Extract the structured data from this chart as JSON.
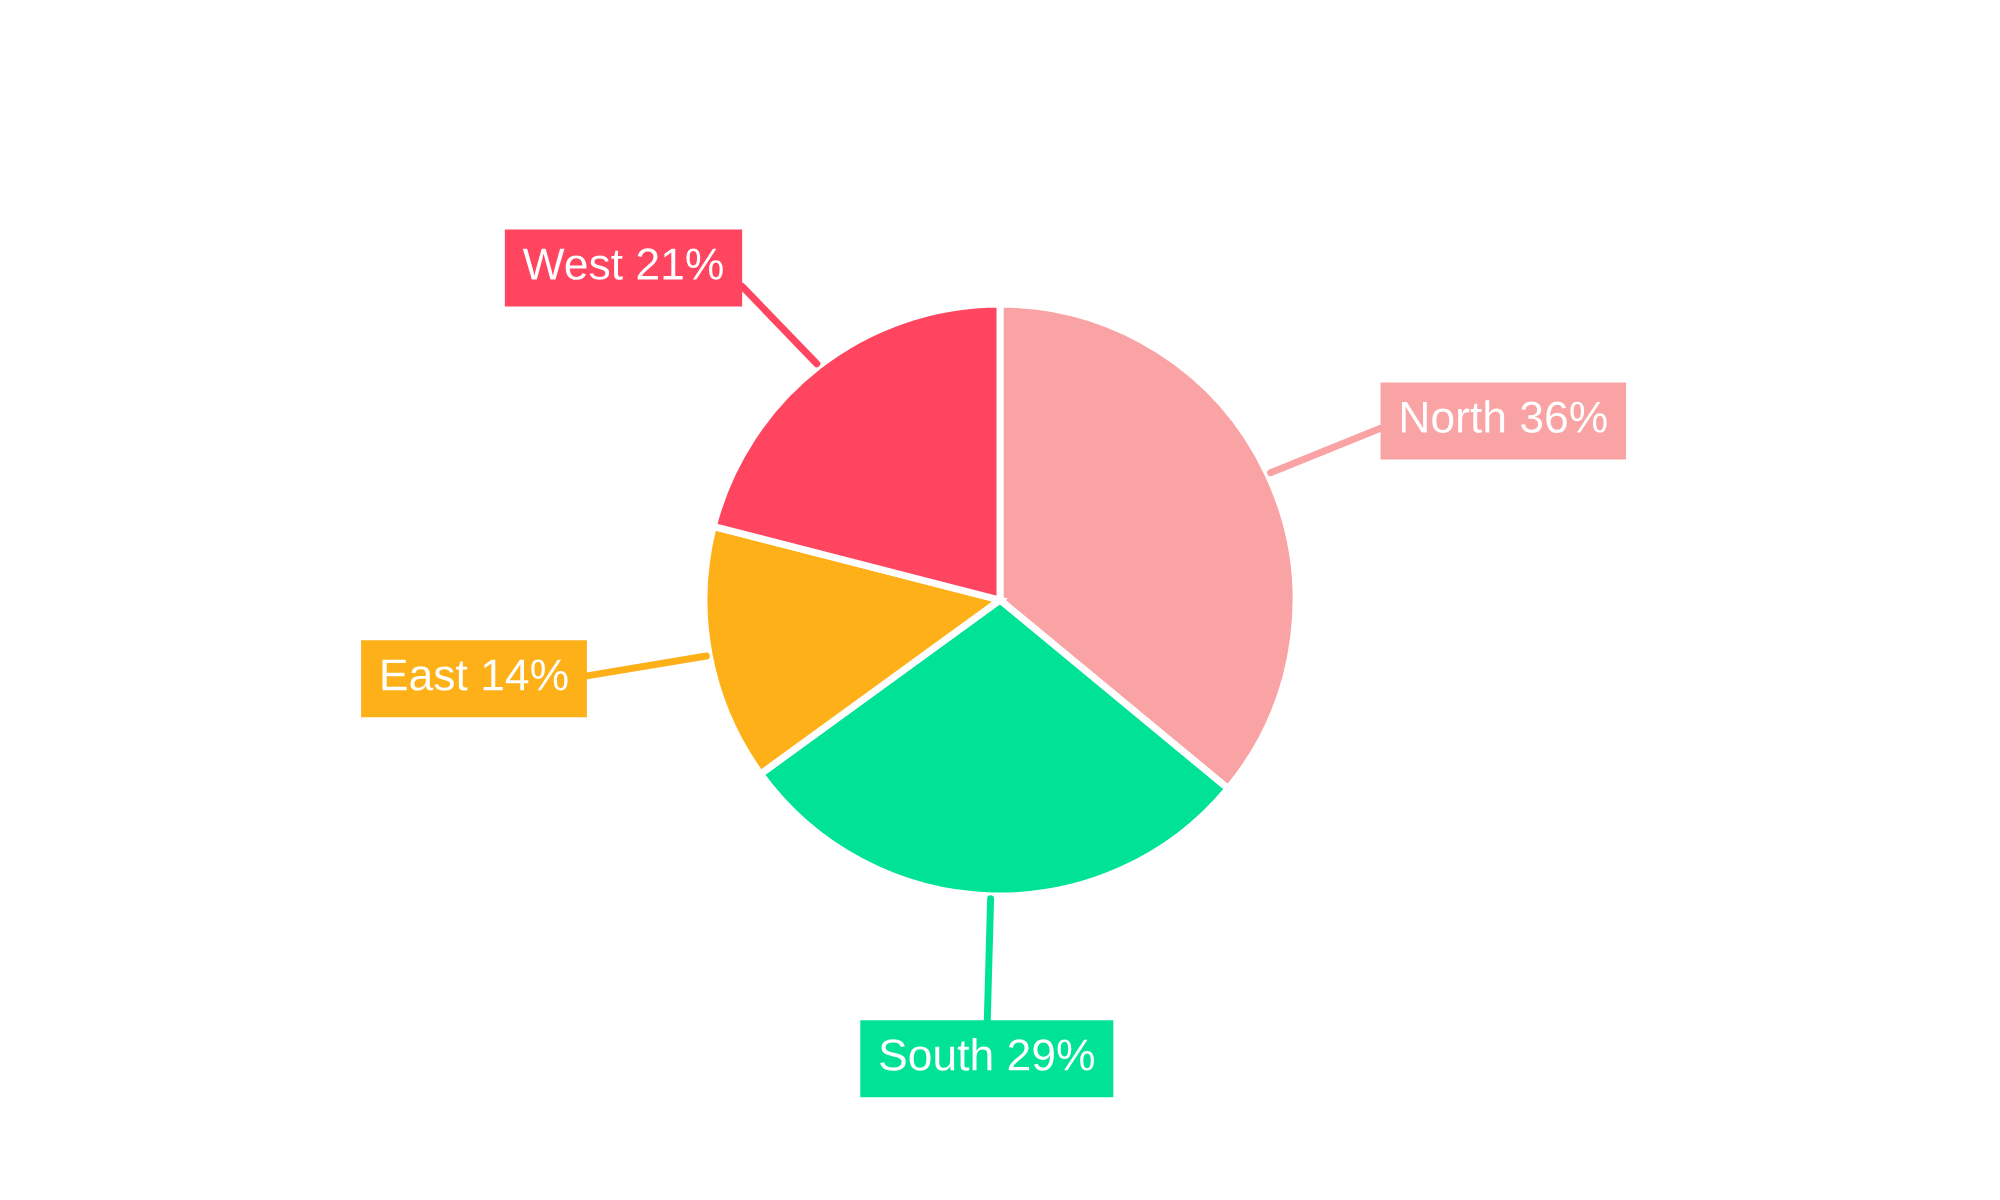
{
  "chart_data": {
    "type": "pie",
    "categories": [
      "North",
      "South",
      "East",
      "West"
    ],
    "values": [
      36,
      29,
      14,
      21
    ],
    "colors": [
      "#f9a3a4",
      "#00e396",
      "#feb019",
      "#ff4560"
    ],
    "value_labels": [
      "36%",
      "29%",
      "14%",
      "21%"
    ]
  }
}
